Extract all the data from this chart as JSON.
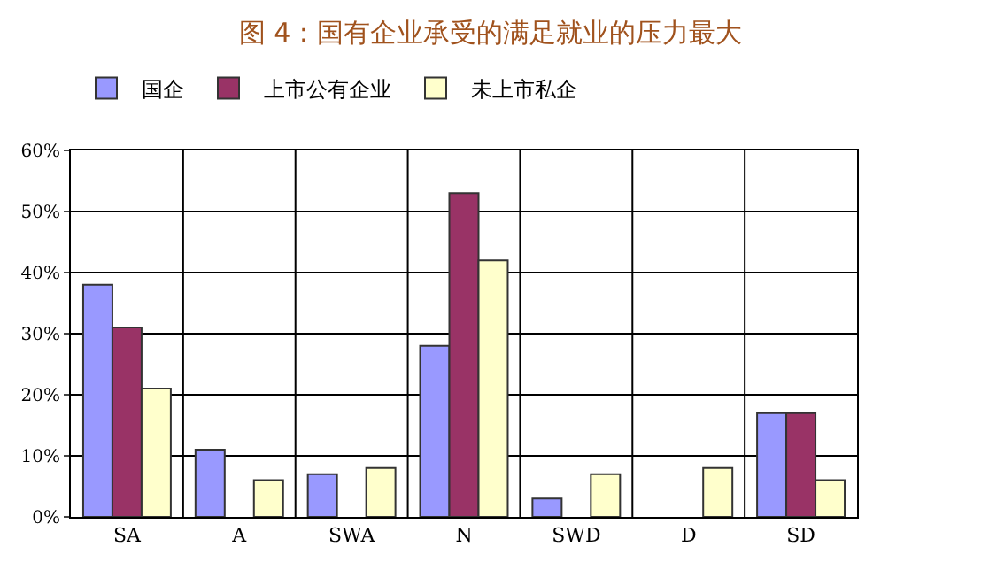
{
  "chart_data": {
    "type": "bar",
    "title": "图 4：国有企业承受的满足就业的压力最大",
    "categories": [
      "SA",
      "A",
      "SWA",
      "N",
      "SWD",
      "D",
      "SD"
    ],
    "series": [
      {
        "name": "国企",
        "color": "#9999ff",
        "values": [
          38,
          11,
          7,
          28,
          3,
          null,
          17
        ]
      },
      {
        "name": "上市公有企业",
        "color": "#993366",
        "values": [
          31,
          null,
          null,
          53,
          null,
          null,
          17
        ]
      },
      {
        "name": "未上市私企",
        "color": "#ffffcc",
        "values": [
          21,
          6,
          8,
          42,
          7,
          8,
          6
        ]
      }
    ],
    "ylim": [
      0,
      60
    ],
    "yticks": [
      {
        "value": 0,
        "label": "0%"
      },
      {
        "value": 10,
        "label": "10%"
      },
      {
        "value": 20,
        "label": "20%"
      },
      {
        "value": 30,
        "label": "30%"
      },
      {
        "value": 40,
        "label": "40%"
      },
      {
        "value": 50,
        "label": "50%"
      },
      {
        "value": 60,
        "label": "60%"
      }
    ],
    "grid": true,
    "legend": "top left"
  }
}
